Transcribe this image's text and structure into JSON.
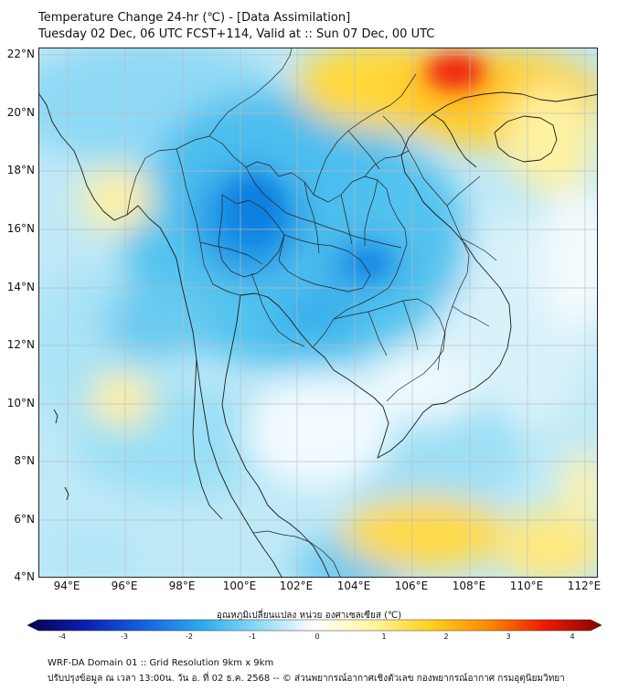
{
  "header": {
    "title_line1": "Temperature Change 24-hr (℃) - [Data Assimilation]",
    "title_line2": "Tuesday 02 Dec, 06 UTC FCST+114, Valid at :: Sun 07 Dec, 00 UTC"
  },
  "map": {
    "lat_ticks": [
      "22°N",
      "20°N",
      "18°N",
      "16°N",
      "14°N",
      "12°N",
      "10°N",
      "8°N",
      "6°N",
      "4°N"
    ],
    "lon_ticks": [
      "94°E",
      "96°E",
      "98°E",
      "100°E",
      "102°E",
      "104°E",
      "106°E",
      "108°E",
      "110°E",
      "112°E"
    ],
    "lat_range": [
      4,
      22.2
    ],
    "lon_range": [
      93,
      112.5
    ],
    "gridlines": true
  },
  "colorbar": {
    "title": "อุณหภูมิเปลี่ยนแปลง หน่วย องศาเซลเซียส (℃)",
    "ticks": [
      "-4",
      "-3",
      "-2",
      "-1",
      "0",
      "1",
      "2",
      "3",
      "4"
    ],
    "range": [
      -4,
      4
    ],
    "colors": [
      "#08004f",
      "#0a1fb0",
      "#1560e0",
      "#2aa8ec",
      "#8ad8f5",
      "#ffffff",
      "#fff6a0",
      "#ffd21e",
      "#ff8c00",
      "#ee1c00",
      "#8b0000"
    ]
  },
  "footer": {
    "line1": "WRF-DA Domain 01 :: Grid Resolution 9km x 9km",
    "line2": "ปรับปรุงข้อมูล ณ เวลา 13:00น. วัน อ. ที่ 02 ธ.ค. 2568 -- © ส่วนพยากรณ์อากาศเชิงตัวเลข กองพยากรณ์อากาศ กรมอุตุนิยมวิทยา"
  }
}
